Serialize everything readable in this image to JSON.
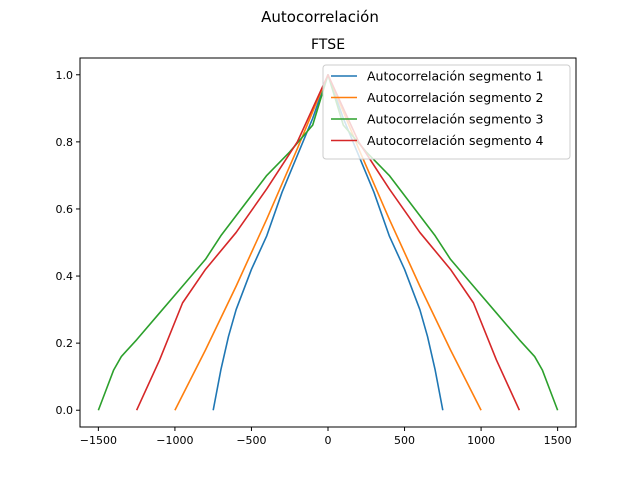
{
  "figure": {
    "suptitle": "Autocorrelación"
  },
  "chart_data": {
    "type": "line",
    "title": "FTSE",
    "xlabel": "",
    "ylabel": "",
    "xlim": [
      -1620,
      1620
    ],
    "ylim": [
      -0.05,
      1.05
    ],
    "xticks": [
      -1500,
      -1000,
      -500,
      0,
      500,
      1000,
      1500
    ],
    "yticks": [
      0.0,
      0.2,
      0.4,
      0.6,
      0.8,
      1.0
    ],
    "xtick_labels": [
      "−1500",
      "−1000",
      "−500",
      "0",
      "500",
      "1000",
      "1500"
    ],
    "ytick_labels": [
      "0.0",
      "0.2",
      "0.4",
      "0.6",
      "0.8",
      "1.0"
    ],
    "grid": false,
    "legend_position": "top-right",
    "series": [
      {
        "name": "Autocorrelación segmento 1",
        "color": "#1f77b4",
        "points": [
          [
            -750,
            0.0
          ],
          [
            -700,
            0.12
          ],
          [
            -650,
            0.22
          ],
          [
            -600,
            0.3
          ],
          [
            -500,
            0.42
          ],
          [
            -400,
            0.52
          ],
          [
            -300,
            0.65
          ],
          [
            -200,
            0.76
          ],
          [
            -100,
            0.87
          ],
          [
            0,
            1.0
          ],
          [
            100,
            0.87
          ],
          [
            200,
            0.76
          ],
          [
            300,
            0.65
          ],
          [
            400,
            0.52
          ],
          [
            500,
            0.42
          ],
          [
            600,
            0.3
          ],
          [
            650,
            0.22
          ],
          [
            700,
            0.12
          ],
          [
            750,
            0.0
          ]
        ]
      },
      {
        "name": "Autocorrelación segmento 2",
        "color": "#ff7f0e",
        "points": [
          [
            -1000,
            0.0
          ],
          [
            -800,
            0.18
          ],
          [
            -600,
            0.37
          ],
          [
            -400,
            0.57
          ],
          [
            -200,
            0.78
          ],
          [
            0,
            1.0
          ],
          [
            200,
            0.78
          ],
          [
            400,
            0.57
          ],
          [
            600,
            0.37
          ],
          [
            800,
            0.18
          ],
          [
            1000,
            0.0
          ]
        ]
      },
      {
        "name": "Autocorrelación segmento 3",
        "color": "#2ca02c",
        "points": [
          [
            -1500,
            0.0
          ],
          [
            -1450,
            0.06
          ],
          [
            -1400,
            0.12
          ],
          [
            -1350,
            0.16
          ],
          [
            -1250,
            0.21
          ],
          [
            -1100,
            0.29
          ],
          [
            -950,
            0.37
          ],
          [
            -800,
            0.45
          ],
          [
            -700,
            0.52
          ],
          [
            -600,
            0.58
          ],
          [
            -400,
            0.7
          ],
          [
            -250,
            0.77
          ],
          [
            -100,
            0.85
          ],
          [
            0,
            1.0
          ],
          [
            100,
            0.85
          ],
          [
            250,
            0.77
          ],
          [
            400,
            0.7
          ],
          [
            600,
            0.58
          ],
          [
            700,
            0.52
          ],
          [
            800,
            0.45
          ],
          [
            950,
            0.37
          ],
          [
            1100,
            0.29
          ],
          [
            1250,
            0.21
          ],
          [
            1350,
            0.16
          ],
          [
            1400,
            0.12
          ],
          [
            1450,
            0.06
          ],
          [
            1500,
            0.0
          ]
        ]
      },
      {
        "name": "Autocorrelación segmento 4",
        "color": "#d62728",
        "points": [
          [
            -1250,
            0.0
          ],
          [
            -1100,
            0.15
          ],
          [
            -950,
            0.32
          ],
          [
            -800,
            0.42
          ],
          [
            -600,
            0.53
          ],
          [
            -400,
            0.66
          ],
          [
            -200,
            0.8
          ],
          [
            0,
            1.0
          ],
          [
            200,
            0.8
          ],
          [
            400,
            0.66
          ],
          [
            600,
            0.53
          ],
          [
            800,
            0.42
          ],
          [
            950,
            0.32
          ],
          [
            1100,
            0.15
          ],
          [
            1250,
            0.0
          ]
        ]
      }
    ]
  }
}
